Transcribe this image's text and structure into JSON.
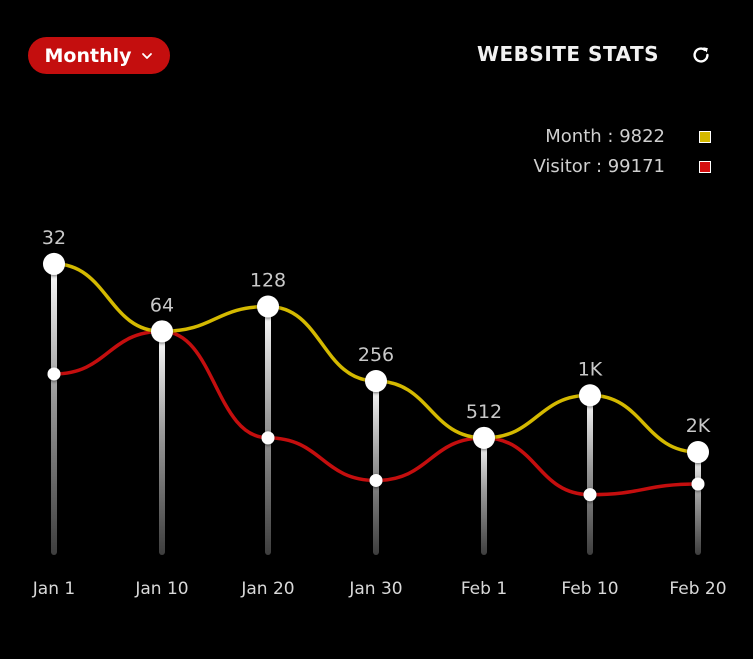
{
  "header": {
    "period_label": "Monthly",
    "title": "WEBSITE STATS",
    "refresh_icon": "refresh-icon",
    "dropdown_icon": "chevron-down-icon"
  },
  "legend": [
    {
      "label": "Month : 9822",
      "color": "#d4b900"
    },
    {
      "label": "Visitor : 99171",
      "color": "#d40f0f"
    }
  ],
  "chart_data": {
    "type": "line",
    "categories": [
      "Jan 1",
      "Jan 10",
      "Jan 20",
      "Jan 30",
      "Feb 1",
      "Feb 10",
      "Feb 20"
    ],
    "top_labels": [
      "32",
      "64",
      "128",
      "256",
      "512",
      "1K",
      "2K"
    ],
    "series": [
      {
        "name": "Month",
        "color": "#d4b900",
        "values": [
          0.82,
          0.63,
          0.7,
          0.49,
          0.33,
          0.45,
          0.29
        ]
      },
      {
        "name": "Visitor",
        "color": "#c40e0e",
        "values": [
          0.51,
          0.63,
          0.33,
          0.21,
          0.33,
          0.17,
          0.2
        ]
      }
    ],
    "ylim": [
      0,
      1
    ],
    "grid": false,
    "legend_position": "top-right"
  }
}
